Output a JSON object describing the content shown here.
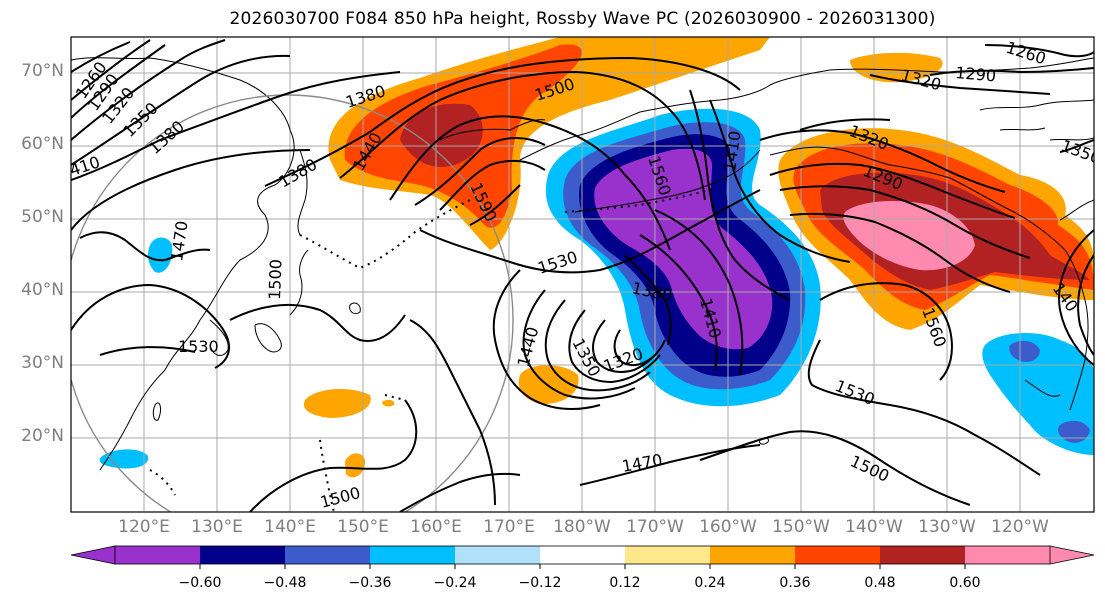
{
  "title": "2026030700 F084 850 hPa height, Rossby Wave PC (2026030900 - 2026031300)",
  "lat_labels": [
    "70°N",
    "60°N",
    "50°N",
    "40°N",
    "30°N",
    "20°N"
  ],
  "lon_labels": [
    "120°E",
    "130°E",
    "140°E",
    "150°E",
    "160°E",
    "170°E",
    "180°W",
    "170°W",
    "160°W",
    "150°W",
    "140°W",
    "130°W",
    "120°W"
  ],
  "contour_labels": [
    "1260",
    "1290",
    "1320",
    "1350",
    "1380",
    "410",
    "1380",
    "1440",
    "1500",
    "1590",
    "1560",
    "1410",
    "1320",
    "1290",
    "1260",
    "1290",
    "1320",
    "1350",
    "1380",
    "1470",
    "1530",
    "1380",
    "1410",
    "1440",
    "1350",
    "1320",
    "1530",
    "1470",
    "1500",
    "1560",
    "140",
    "1530",
    "1500",
    "1500"
  ],
  "colorbar": {
    "ticks": [
      "−0.60",
      "−0.48",
      "−0.36",
      "−0.24",
      "−0.12",
      "0.12",
      "0.24",
      "0.36",
      "0.48",
      "0.60"
    ],
    "colors": [
      "#9932cc",
      "#00008b",
      "#3c5ccc",
      "#00bfff",
      "#b0e0fa",
      "#ffffff",
      "#ffe88a",
      "#ffa500",
      "#ff4500",
      "#b22222",
      "#ff8ab0",
      "#ff8ab0"
    ]
  }
}
